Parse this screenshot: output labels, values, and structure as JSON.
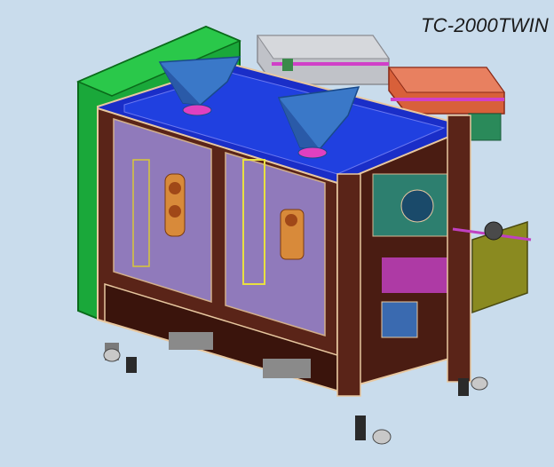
{
  "title": "TC-2000TWIN",
  "colors": {
    "background": "#c9dcec",
    "frame": "#5a2418",
    "frame_edge": "#e8c8a0",
    "panel_glass": "#9a8ad8",
    "top_deck": "#1a2ec8",
    "hopper": "#3a78c8",
    "side_cabinet": "#18a838",
    "film_roll_left": "#b8b8c0",
    "film_roll_right": "#e05838",
    "side_plate": "#8a8a20",
    "bracket_green": "#3a8a4a"
  }
}
